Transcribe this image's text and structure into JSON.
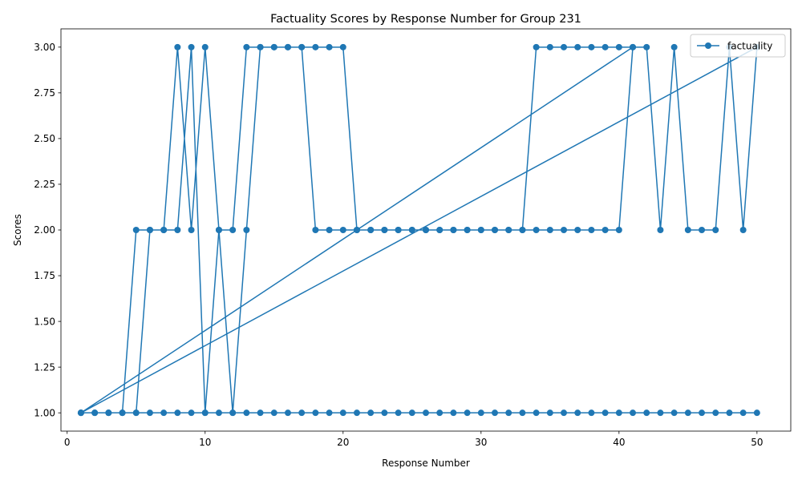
{
  "chart_data": {
    "type": "line",
    "title": "Factuality Scores by Response Number for Group 231",
    "xlabel": "Response Number",
    "ylabel": "Scores",
    "xlim": [
      -0.45,
      52.45
    ],
    "ylim": [
      0.9,
      3.1
    ],
    "x_ticks": [
      0,
      10,
      20,
      30,
      40,
      50
    ],
    "x_tick_labels": [
      "0",
      "10",
      "20",
      "30",
      "40",
      "50"
    ],
    "y_ticks": [
      1.0,
      1.25,
      1.5,
      1.75,
      2.0,
      2.25,
      2.5,
      2.75,
      3.0
    ],
    "y_tick_labels": [
      "1.00",
      "1.25",
      "1.50",
      "1.75",
      "2.00",
      "2.25",
      "2.50",
      "2.75",
      "3.00"
    ],
    "grid": false,
    "legend_position": "upper right",
    "series": [
      {
        "name": "factuality",
        "color": "#1f77b4",
        "marker": "circle",
        "points": [
          [
            1,
            1
          ],
          [
            2,
            1
          ],
          [
            3,
            1
          ],
          [
            4,
            1
          ],
          [
            5,
            1
          ],
          [
            6,
            1
          ],
          [
            7,
            1
          ],
          [
            8,
            1
          ],
          [
            9,
            1
          ],
          [
            10,
            1
          ],
          [
            11,
            1
          ],
          [
            12,
            1
          ],
          [
            13,
            1
          ],
          [
            14,
            1
          ],
          [
            15,
            1
          ],
          [
            16,
            1
          ],
          [
            17,
            1
          ],
          [
            18,
            1
          ],
          [
            19,
            1
          ],
          [
            20,
            1
          ],
          [
            21,
            1
          ],
          [
            22,
            1
          ],
          [
            23,
            1
          ],
          [
            24,
            1
          ],
          [
            25,
            1
          ],
          [
            26,
            1
          ],
          [
            27,
            1
          ],
          [
            28,
            1
          ],
          [
            29,
            1
          ],
          [
            30,
            1
          ],
          [
            31,
            1
          ],
          [
            32,
            1
          ],
          [
            33,
            1
          ],
          [
            34,
            1
          ],
          [
            35,
            1
          ],
          [
            36,
            1
          ],
          [
            37,
            1
          ],
          [
            38,
            1
          ],
          [
            39,
            1
          ],
          [
            40,
            1
          ],
          [
            41,
            1
          ],
          [
            42,
            1
          ],
          [
            43,
            1
          ],
          [
            44,
            1
          ],
          [
            45,
            1
          ],
          [
            46,
            1
          ],
          [
            47,
            1
          ],
          [
            48,
            1
          ],
          [
            49,
            1
          ],
          [
            50,
            1
          ],
          [
            1,
            1
          ],
          [
            2,
            1
          ],
          [
            3,
            1
          ],
          [
            4,
            1
          ],
          [
            5,
            2
          ],
          [
            6,
            2
          ],
          [
            7,
            2
          ],
          [
            8,
            2
          ],
          [
            9,
            3
          ],
          [
            10,
            1
          ],
          [
            11,
            2
          ],
          [
            12,
            2
          ],
          [
            13,
            3
          ],
          [
            14,
            3
          ],
          [
            15,
            3
          ],
          [
            16,
            3
          ],
          [
            17,
            3
          ],
          [
            18,
            2
          ],
          [
            19,
            2
          ],
          [
            20,
            2
          ],
          [
            21,
            2
          ],
          [
            22,
            2
          ],
          [
            23,
            2
          ],
          [
            24,
            2
          ],
          [
            25,
            2
          ],
          [
            26,
            2
          ],
          [
            27,
            2
          ],
          [
            28,
            2
          ],
          [
            29,
            2
          ],
          [
            30,
            2
          ],
          [
            31,
            2
          ],
          [
            32,
            2
          ],
          [
            33,
            2
          ],
          [
            34,
            2
          ],
          [
            35,
            2
          ],
          [
            36,
            2
          ],
          [
            37,
            2
          ],
          [
            38,
            2
          ],
          [
            39,
            2
          ],
          [
            40,
            2
          ],
          [
            41,
            3
          ],
          [
            42,
            3
          ],
          [
            43,
            2
          ],
          [
            44,
            3
          ],
          [
            45,
            2
          ],
          [
            46,
            2
          ],
          [
            47,
            2
          ],
          [
            48,
            3
          ],
          [
            49,
            2
          ],
          [
            50,
            3
          ],
          [
            1,
            1
          ],
          [
            2,
            1
          ],
          [
            3,
            1
          ],
          [
            4,
            1
          ],
          [
            5,
            1
          ],
          [
            6,
            2
          ],
          [
            7,
            2
          ],
          [
            8,
            3
          ],
          [
            9,
            2
          ],
          [
            10,
            3
          ],
          [
            11,
            2
          ],
          [
            12,
            1
          ],
          [
            13,
            2
          ],
          [
            14,
            3
          ],
          [
            15,
            3
          ],
          [
            16,
            3
          ],
          [
            17,
            3
          ],
          [
            18,
            3
          ],
          [
            19,
            3
          ],
          [
            20,
            3
          ],
          [
            21,
            2
          ],
          [
            22,
            2
          ],
          [
            23,
            2
          ],
          [
            24,
            2
          ],
          [
            25,
            2
          ],
          [
            26,
            2
          ],
          [
            27,
            2
          ],
          [
            28,
            2
          ],
          [
            29,
            2
          ],
          [
            30,
            2
          ],
          [
            31,
            2
          ],
          [
            32,
            2
          ],
          [
            33,
            2
          ],
          [
            34,
            3
          ],
          [
            35,
            3
          ],
          [
            36,
            3
          ],
          [
            37,
            3
          ],
          [
            38,
            3
          ],
          [
            39,
            3
          ],
          [
            40,
            3
          ],
          [
            41,
            3
          ],
          [
            1,
            1
          ]
        ]
      }
    ]
  }
}
